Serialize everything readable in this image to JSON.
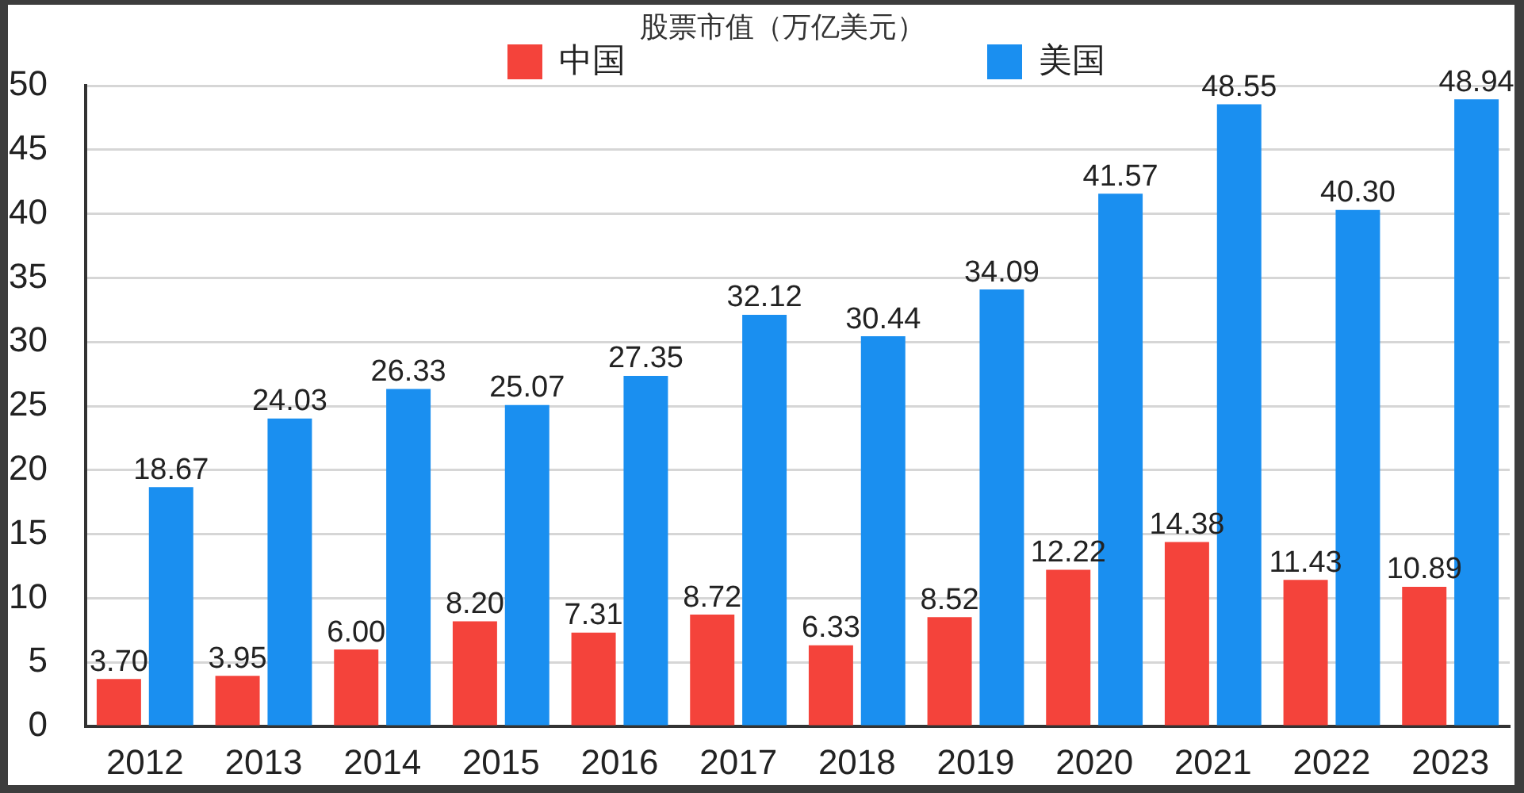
{
  "chart_data": {
    "type": "bar",
    "title": "股票市值（万亿美元）",
    "categories": [
      "2012",
      "2013",
      "2014",
      "2015",
      "2016",
      "2017",
      "2018",
      "2019",
      "2020",
      "2021",
      "2022",
      "2023"
    ],
    "series": [
      {
        "name": "中国",
        "color": "#f4433b",
        "values": [
          3.7,
          3.95,
          6.0,
          8.2,
          7.31,
          8.72,
          6.33,
          8.52,
          12.22,
          14.38,
          11.43,
          10.89
        ],
        "value_labels": [
          "3.70",
          "3.95",
          "6.00",
          "8.20",
          "7.31",
          "8.72",
          "6.33",
          "8.52",
          "12.22",
          "14.38",
          "11.43",
          "10.89"
        ]
      },
      {
        "name": "美国",
        "color": "#1a8ff0",
        "values": [
          18.67,
          24.03,
          26.33,
          25.07,
          27.35,
          32.12,
          30.44,
          34.09,
          41.57,
          48.55,
          40.3,
          48.94
        ],
        "value_labels": [
          "18.67",
          "24.03",
          "26.33",
          "25.07",
          "27.35",
          "32.12",
          "30.44",
          "34.09",
          "41.57",
          "48.55",
          "40.30",
          "48.94"
        ]
      }
    ],
    "ylim": [
      0,
      50
    ],
    "yticks": [
      0,
      5,
      10,
      15,
      20,
      25,
      30,
      35,
      40,
      45,
      50
    ],
    "grid": "y",
    "legend": "top"
  }
}
